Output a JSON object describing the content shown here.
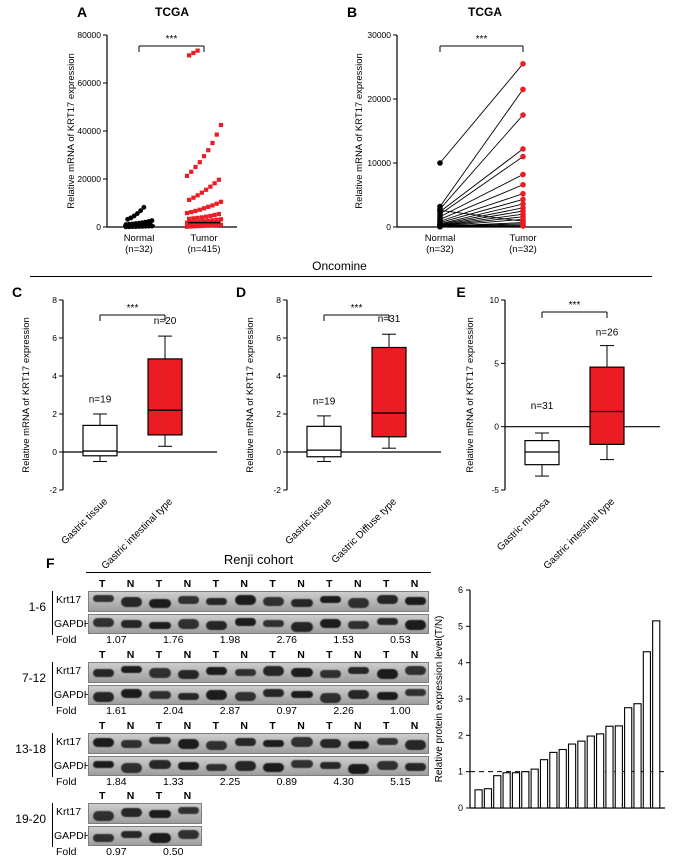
{
  "oncomine": {
    "label": "Oncomine"
  },
  "blots": {
    "panel_label": "F",
    "title": "Renji cohort",
    "row_labels": [
      "Krt17",
      "GAPDH",
      "Fold"
    ],
    "lane_labels": [
      "T",
      "N"
    ],
    "groups": [
      {
        "id": "1-6",
        "pairs": 6,
        "folds": [
          "1.07",
          "1.76",
          "1.98",
          "2.76",
          "1.53",
          "0.53"
        ]
      },
      {
        "id": "7-12",
        "pairs": 6,
        "folds": [
          "1.61",
          "2.04",
          "2.87",
          "0.97",
          "2.26",
          "1.00"
        ]
      },
      {
        "id": "13-18",
        "pairs": 6,
        "folds": [
          "1.84",
          "1.33",
          "2.25",
          "0.89",
          "4.30",
          "5.15"
        ]
      },
      {
        "id": "19-20",
        "pairs": 2,
        "folds": [
          "0.97",
          "0.50"
        ]
      }
    ]
  },
  "chart_data": [
    {
      "id": "A",
      "panel_label": "A",
      "type": "scatter",
      "title": "TCGA",
      "ylabel": "Relative  mRNA of KRT17 expression",
      "ylim": [
        0,
        80000
      ],
      "yticks": [
        0,
        20000,
        40000,
        60000,
        80000
      ],
      "significance": "***",
      "categories": [
        "Normal\n(n=32)",
        "Tumor\n(n=415)"
      ],
      "series": [
        {
          "name": "Normal (n=32)",
          "marker": "circle",
          "color": "#000000",
          "center": 600,
          "values": [
            50,
            80,
            120,
            160,
            200,
            250,
            300,
            350,
            400,
            450,
            500,
            560,
            630,
            700,
            780,
            860,
            950,
            1050,
            1150,
            1300,
            1450,
            1600,
            1800,
            2000,
            2300,
            2700,
            3200,
            3800,
            4600,
            5600,
            6800,
            8200
          ]
        },
        {
          "name": "Tumor (n=415)",
          "marker": "square",
          "color": "#ED1C24",
          "center": 1800,
          "values": [
            100,
            200,
            300,
            400,
            500,
            600,
            700,
            800,
            900,
            1000,
            1100,
            1200,
            1300,
            1400,
            1500,
            1600,
            1700,
            1800,
            1900,
            2000,
            2200,
            2400,
            2600,
            2800,
            3000,
            3200,
            3400,
            3600,
            3800,
            4000,
            4300,
            4600,
            5000,
            5400,
            5800,
            6200,
            6700,
            7200,
            7800,
            8400,
            9000,
            9700,
            10500,
            11300,
            12200,
            13200,
            14300,
            15500,
            16800,
            18200,
            19700,
            21300,
            23000,
            25000,
            27000,
            29500,
            32000,
            35000,
            38500,
            42500,
            71500,
            72500,
            73500
          ]
        }
      ]
    },
    {
      "id": "B",
      "panel_label": "B",
      "type": "paired",
      "title": "TCGA",
      "ylabel": "Relative  mRNA of KRT17 expression",
      "ylim": [
        0,
        30000
      ],
      "yticks": [
        0,
        10000,
        20000,
        30000
      ],
      "significance": "***",
      "categories": [
        "Normal\n(n=32)",
        "Tumor\n(n=32)"
      ],
      "colors": [
        "#000000",
        "#ED1C24"
      ],
      "pairs": [
        [
          10000,
          25500
        ],
        [
          3200,
          21500
        ],
        [
          2800,
          17500
        ],
        [
          2400,
          12200
        ],
        [
          2000,
          11000
        ],
        [
          1600,
          8200
        ],
        [
          1200,
          6600
        ],
        [
          900,
          5200
        ],
        [
          700,
          4300
        ],
        [
          500,
          3600
        ],
        [
          400,
          3000
        ],
        [
          300,
          2500
        ],
        [
          250,
          2000
        ],
        [
          200,
          1600
        ],
        [
          150,
          1200
        ],
        [
          2600,
          900
        ],
        [
          120,
          700
        ],
        [
          90,
          500
        ],
        [
          60,
          300
        ],
        [
          40,
          150
        ]
      ]
    },
    {
      "id": "C",
      "panel_label": "C",
      "type": "box",
      "ylabel": "Relative  mRNA of KRT17 expression",
      "ylim": [
        -2,
        8
      ],
      "yticks": [
        -2,
        0,
        2,
        4,
        6,
        8
      ],
      "significance": "***",
      "groups": [
        {
          "label": "Gastric tissue",
          "n": "n=19",
          "n_y": 2.6,
          "color": "#FFFFFF",
          "low": -0.5,
          "q1": -0.2,
          "median": 0.05,
          "q3": 1.4,
          "high": 2.0
        },
        {
          "label": "Gastric intestinal type",
          "n": "n=20",
          "n_y": 6.75,
          "color": "#ED1C24",
          "low": 0.3,
          "q1": 0.9,
          "median": 2.2,
          "q3": 4.9,
          "high": 6.1
        }
      ]
    },
    {
      "id": "D",
      "panel_label": "D",
      "type": "box",
      "ylabel": "Relative  mRNA of KRT17 expression",
      "ylim": [
        -2,
        8
      ],
      "yticks": [
        -2,
        0,
        2,
        4,
        6,
        8
      ],
      "significance": "***",
      "groups": [
        {
          "label": "Gastric tissue",
          "n": "n=19",
          "n_y": 2.5,
          "color": "#FFFFFF",
          "low": -0.5,
          "q1": -0.25,
          "median": 0.1,
          "q3": 1.35,
          "high": 1.9
        },
        {
          "label": "Gastric Diffuse type",
          "n": "n=31",
          "n_y": 6.85,
          "color": "#ED1C24",
          "low": 0.2,
          "q1": 0.8,
          "median": 2.05,
          "q3": 5.5,
          "high": 6.2
        }
      ]
    },
    {
      "id": "E",
      "panel_label": "E",
      "type": "box",
      "ylabel": "Relative  mRNA of KRT17 expression",
      "ylim": [
        -5,
        10
      ],
      "yticks": [
        -5,
        0,
        5,
        10
      ],
      "significance": "***",
      "groups": [
        {
          "label": "Gastric mucosa",
          "n": "n=31",
          "n_y": 1.4,
          "color": "#FFFFFF",
          "low": -3.9,
          "q1": -3.0,
          "median": -2.0,
          "q3": -1.1,
          "high": -0.5
        },
        {
          "label": "Gastric intestinal type",
          "n": "n=26",
          "n_y": 7.2,
          "color": "#ED1C24",
          "low": -2.6,
          "q1": -1.4,
          "median": 1.2,
          "q3": 4.7,
          "high": 6.4
        }
      ]
    },
    {
      "id": "F-bar",
      "type": "bar",
      "ylabel": "Relative protein expression level(T/N)",
      "ylim": [
        0,
        6
      ],
      "yticks": [
        0,
        1,
        2,
        3,
        4,
        5,
        6
      ],
      "reference_line": 1,
      "values": [
        0.5,
        0.53,
        0.89,
        0.97,
        0.97,
        1.0,
        1.07,
        1.33,
        1.53,
        1.61,
        1.76,
        1.84,
        1.98,
        2.04,
        2.25,
        2.26,
        2.76,
        2.87,
        4.3,
        5.15
      ]
    }
  ]
}
